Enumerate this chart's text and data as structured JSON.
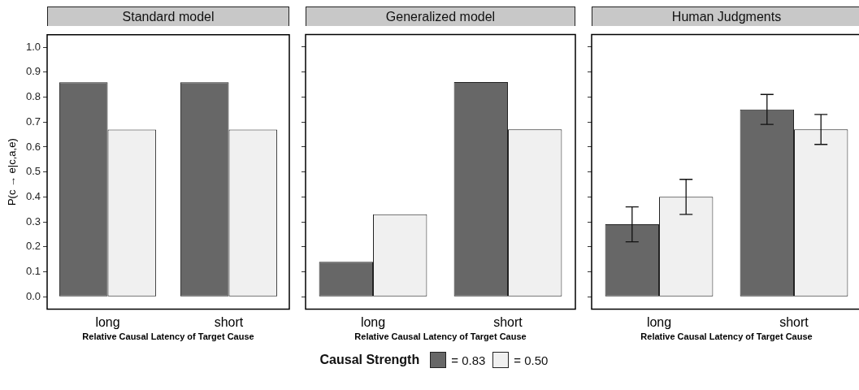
{
  "chart_data": [
    {
      "type": "bar",
      "title": "Standard model",
      "xlabel": "Relative Causal Latency of Target Cause",
      "ylabel": "P(c → e|c,a,e)",
      "categories": [
        "long",
        "short"
      ],
      "series": [
        {
          "color": "#676767",
          "values": [
            0.86,
            0.86
          ]
        },
        {
          "color": "#f0f0f0",
          "values": [
            0.67,
            0.67
          ]
        }
      ],
      "ylim": [
        -0.05,
        1.05
      ],
      "yticks": [
        {
          "value": 0,
          "label": "0.0"
        },
        0.1,
        0.2,
        0.3,
        0.4,
        0.5,
        0.6,
        0.7,
        0.8,
        0.9,
        {
          "value": 1,
          "label": "1.0"
        }
      ]
    },
    {
      "type": "bar",
      "title": "Generalized model",
      "xlabel": "Relative Causal Latency of Target Cause",
      "categories": [
        "long",
        "short"
      ],
      "series": [
        {
          "name": "= 0.83",
          "color": "#676767",
          "values": [
            0.14,
            0.86
          ]
        },
        {
          "name": "= 0.50",
          "color": "#f0f0f0",
          "values": [
            0.33,
            0.67
          ]
        }
      ],
      "ylim": [
        -0.05,
        1.05
      ],
      "yticks": [
        0,
        0.1,
        0.2,
        0.3,
        0.4,
        0.5,
        0.6,
        0.7,
        0.8,
        0.9,
        1
      ],
      "tick_labels": "x",
      "legend": "bottom",
      "legend_title": "Causal Strength"
    },
    {
      "type": "bar",
      "title": "Human Judgments",
      "xlabel": "Relative Causal Latency of Target Cause",
      "categories": [
        "long",
        "short"
      ],
      "series": [
        {
          "color": "#676767",
          "values": [
            0.29,
            0.75
          ],
          "errors": [
            0.07,
            0.06
          ]
        },
        {
          "color": "#f0f0f0",
          "values": [
            0.4,
            0.67
          ],
          "errors": [
            0.07,
            0.06
          ]
        }
      ],
      "ylim": [
        -0.05,
        1.05
      ],
      "yticks": [
        0,
        0.1,
        0.2,
        0.3,
        0.4,
        0.5,
        0.6,
        0.7,
        0.8,
        0.9,
        1
      ],
      "tick_labels": "x"
    }
  ]
}
